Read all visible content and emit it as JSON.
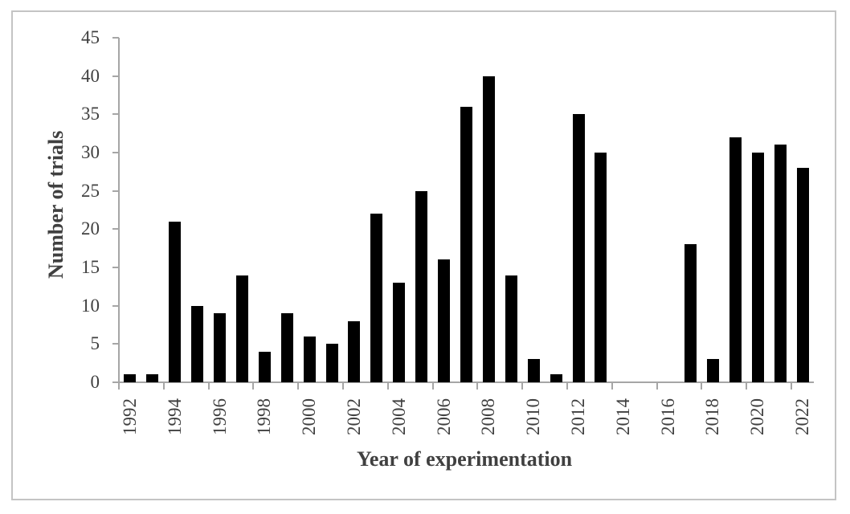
{
  "figure": {
    "background_color": "#ffffff",
    "border_color": "#c4c4c4",
    "bar_color": "#000000",
    "axis_color": "#a6a6a6",
    "label_color": "#404040"
  },
  "chart_data": {
    "type": "bar",
    "title": "",
    "xlabel": "Year of experimentation",
    "ylabel": "Number of trials",
    "categories": [
      "1992",
      "1993",
      "1994",
      "1995",
      "1996",
      "1997",
      "1998",
      "1999",
      "2000",
      "2001",
      "2002",
      "2003",
      "2004",
      "2005",
      "2006",
      "2007",
      "2008",
      "2009",
      "2010",
      "2011",
      "2012",
      "2013",
      "2014",
      "2015",
      "2016",
      "2017",
      "2018",
      "2019",
      "2020",
      "2021",
      "2022"
    ],
    "values": [
      1,
      1,
      21,
      10,
      9,
      14,
      4,
      9,
      6,
      5,
      8,
      22,
      13,
      25,
      16,
      36,
      40,
      14,
      3,
      1,
      35,
      30,
      0,
      0,
      0,
      18,
      3,
      32,
      30,
      31,
      28
    ],
    "x_tick_labels": [
      "1992",
      "1994",
      "1996",
      "1998",
      "2000",
      "2002",
      "2004",
      "2006",
      "2008",
      "2010",
      "2012",
      "2014",
      "2016",
      "2018",
      "2020",
      "2022"
    ],
    "y_tick_labels": [
      "0",
      "5",
      "10",
      "15",
      "20",
      "25",
      "30",
      "35",
      "40",
      "45"
    ],
    "ylim": [
      0,
      45
    ],
    "grid": false,
    "legend": false
  }
}
